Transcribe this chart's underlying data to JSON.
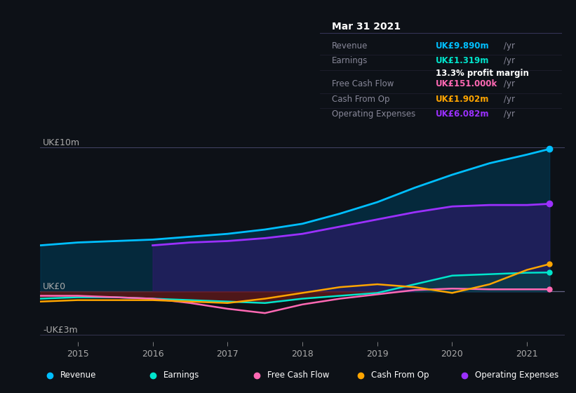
{
  "bg_color": "#0d1117",
  "plot_bg_color": "#0d1117",
  "title": "Mar 31 2021",
  "ylabel_top": "UK£10m",
  "ylabel_zero": "UK£0",
  "ylabel_bot": "-UK£3m",
  "ylim": [
    -3.5,
    11.5
  ],
  "xlim": [
    2014.5,
    2021.5
  ],
  "xticks": [
    2015,
    2016,
    2017,
    2018,
    2019,
    2020,
    2021
  ],
  "years": [
    2014.5,
    2015.0,
    2015.5,
    2016.0,
    2016.5,
    2017.0,
    2017.5,
    2018.0,
    2018.5,
    2019.0,
    2019.5,
    2020.0,
    2020.5,
    2021.0,
    2021.3
  ],
  "revenue": [
    3.2,
    3.4,
    3.5,
    3.6,
    3.8,
    4.0,
    4.3,
    4.7,
    5.4,
    6.2,
    7.2,
    8.1,
    8.9,
    9.5,
    9.89
  ],
  "op_expenses": [
    null,
    null,
    null,
    3.2,
    3.4,
    3.5,
    3.7,
    4.0,
    4.5,
    5.0,
    5.5,
    5.9,
    6.0,
    6.0,
    6.082
  ],
  "earnings": [
    -0.5,
    -0.4,
    -0.4,
    -0.5,
    -0.6,
    -0.7,
    -0.8,
    -0.5,
    -0.3,
    -0.1,
    0.5,
    1.1,
    1.2,
    1.3,
    1.319
  ],
  "free_cash_flow": [
    -0.3,
    -0.3,
    -0.4,
    -0.5,
    -0.8,
    -1.2,
    -1.5,
    -0.9,
    -0.5,
    -0.2,
    0.1,
    0.2,
    0.15,
    0.151,
    0.151
  ],
  "cash_from_op": [
    -0.7,
    -0.6,
    -0.6,
    -0.6,
    -0.7,
    -0.8,
    -0.5,
    -0.1,
    0.3,
    0.5,
    0.3,
    -0.1,
    0.5,
    1.5,
    1.902
  ],
  "revenue_color": "#00bfff",
  "earnings_color": "#00e5cc",
  "fcf_color": "#ff69b4",
  "cashop_color": "#ffa500",
  "opex_color": "#9b30ff",
  "revenue_fill": "#003d5c",
  "opex_fill": "#2d1b69",
  "earnings_fill_pos": "#004d40",
  "earnings_fill_neg": "#7a1c1c",
  "info_box": {
    "date": "Mar 31 2021",
    "revenue_label": "Revenue",
    "revenue_value": "UK£9.890m",
    "revenue_color": "#00bfff",
    "earnings_label": "Earnings",
    "earnings_value": "UK£1.319m",
    "earnings_color": "#00e5cc",
    "margin_text": "13.3% profit margin",
    "fcf_label": "Free Cash Flow",
    "fcf_value": "UK£151.000k",
    "fcf_color": "#ff69b4",
    "cashop_label": "Cash From Op",
    "cashop_value": "UK£1.902m",
    "cashop_color": "#ffa500",
    "opex_label": "Operating Expenses",
    "opex_value": "UK£6.082m",
    "opex_color": "#9b30ff"
  },
  "legend_items": [
    {
      "label": "Revenue",
      "color": "#00bfff"
    },
    {
      "label": "Earnings",
      "color": "#00e5cc"
    },
    {
      "label": "Free Cash Flow",
      "color": "#ff69b4"
    },
    {
      "label": "Cash From Op",
      "color": "#ffa500"
    },
    {
      "label": "Operating Expenses",
      "color": "#9b30ff"
    }
  ]
}
